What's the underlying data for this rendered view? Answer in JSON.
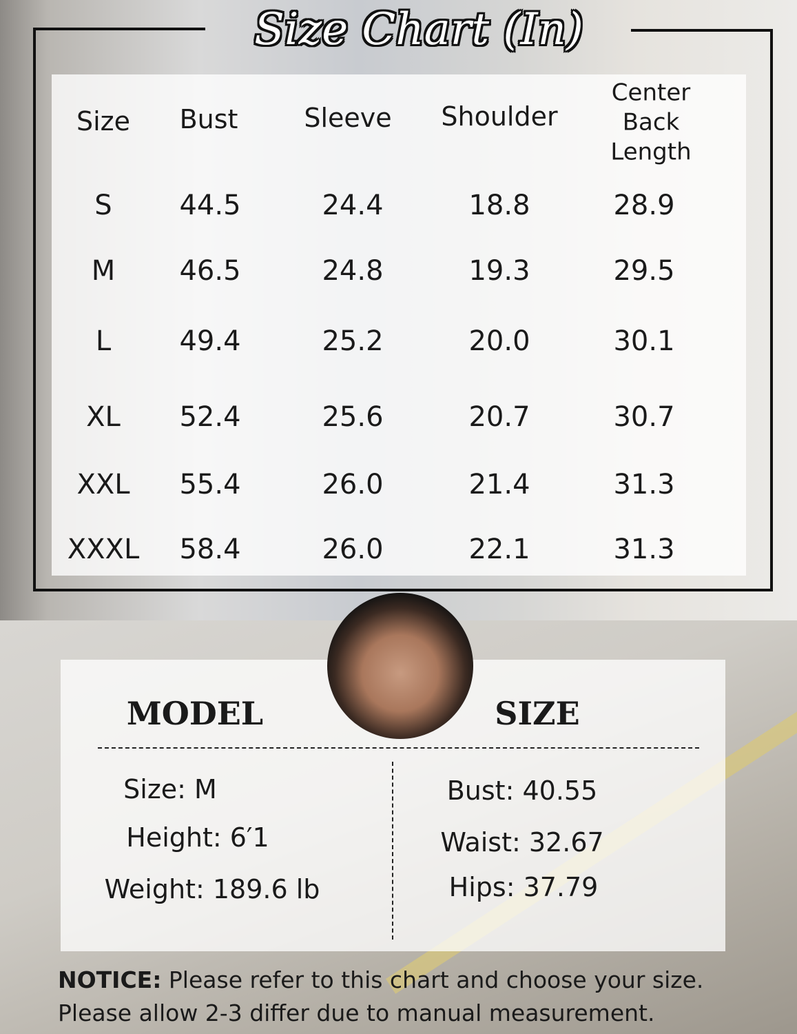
{
  "title": "Size Chart (In)",
  "table": {
    "headers": [
      "Size",
      "Bust",
      "Sleeve",
      "Shoulder",
      "Center Back Length"
    ],
    "header_lines_cbl": [
      "Center",
      "Back",
      "Length"
    ],
    "rows": [
      [
        "S",
        "44.5",
        "24.4",
        "18.8",
        "28.9"
      ],
      [
        "M",
        "46.5",
        "24.8",
        "19.3",
        "29.5"
      ],
      [
        "L",
        "49.4",
        "25.2",
        "20.0",
        "30.1"
      ],
      [
        "XL",
        "52.4",
        "25.6",
        "20.7",
        "30.7"
      ],
      [
        "XXL",
        "55.4",
        "26.0",
        "21.4",
        "31.3"
      ],
      [
        "XXXL",
        "58.4",
        "26.0",
        "22.1",
        "31.3"
      ]
    ]
  },
  "model": {
    "heading_left": "MODEL",
    "heading_right": "SIZE",
    "left": [
      "Size: M",
      "Height: 6′1",
      "Weight: 189.6 lb"
    ],
    "right": [
      "Bust: 40.55",
      "Waist: 32.67",
      "Hips: 37.79"
    ]
  },
  "notice": {
    "label": "NOTICE:",
    "line1": " Please refer to this chart and choose your size.",
    "line2": "Please allow 2-3 differ due to manual measurement."
  }
}
